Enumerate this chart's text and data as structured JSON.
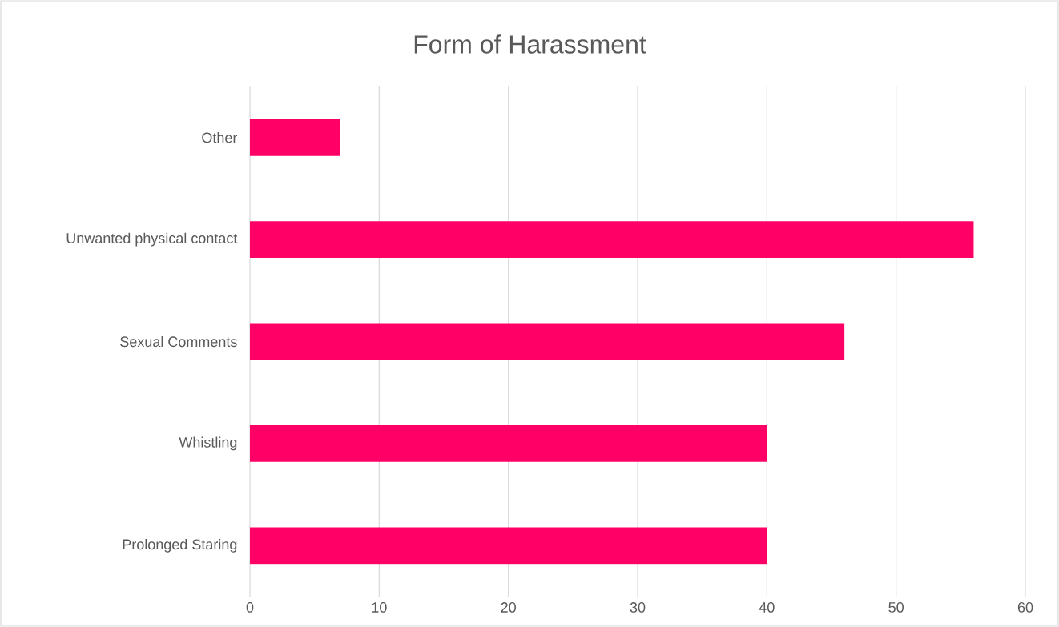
{
  "chart_data": {
    "type": "bar",
    "orientation": "horizontal",
    "title": "Form of Harassment",
    "categories": [
      "Other",
      "Unwanted physical contact",
      "Sexual Comments",
      "Whistling",
      "Prolonged Staring"
    ],
    "values": [
      7,
      56,
      46,
      40,
      40
    ],
    "color": "#ff0066",
    "xlim": [
      0,
      60
    ],
    "xticks": [
      0,
      10,
      20,
      30,
      40,
      50,
      60
    ],
    "grid": "x"
  }
}
